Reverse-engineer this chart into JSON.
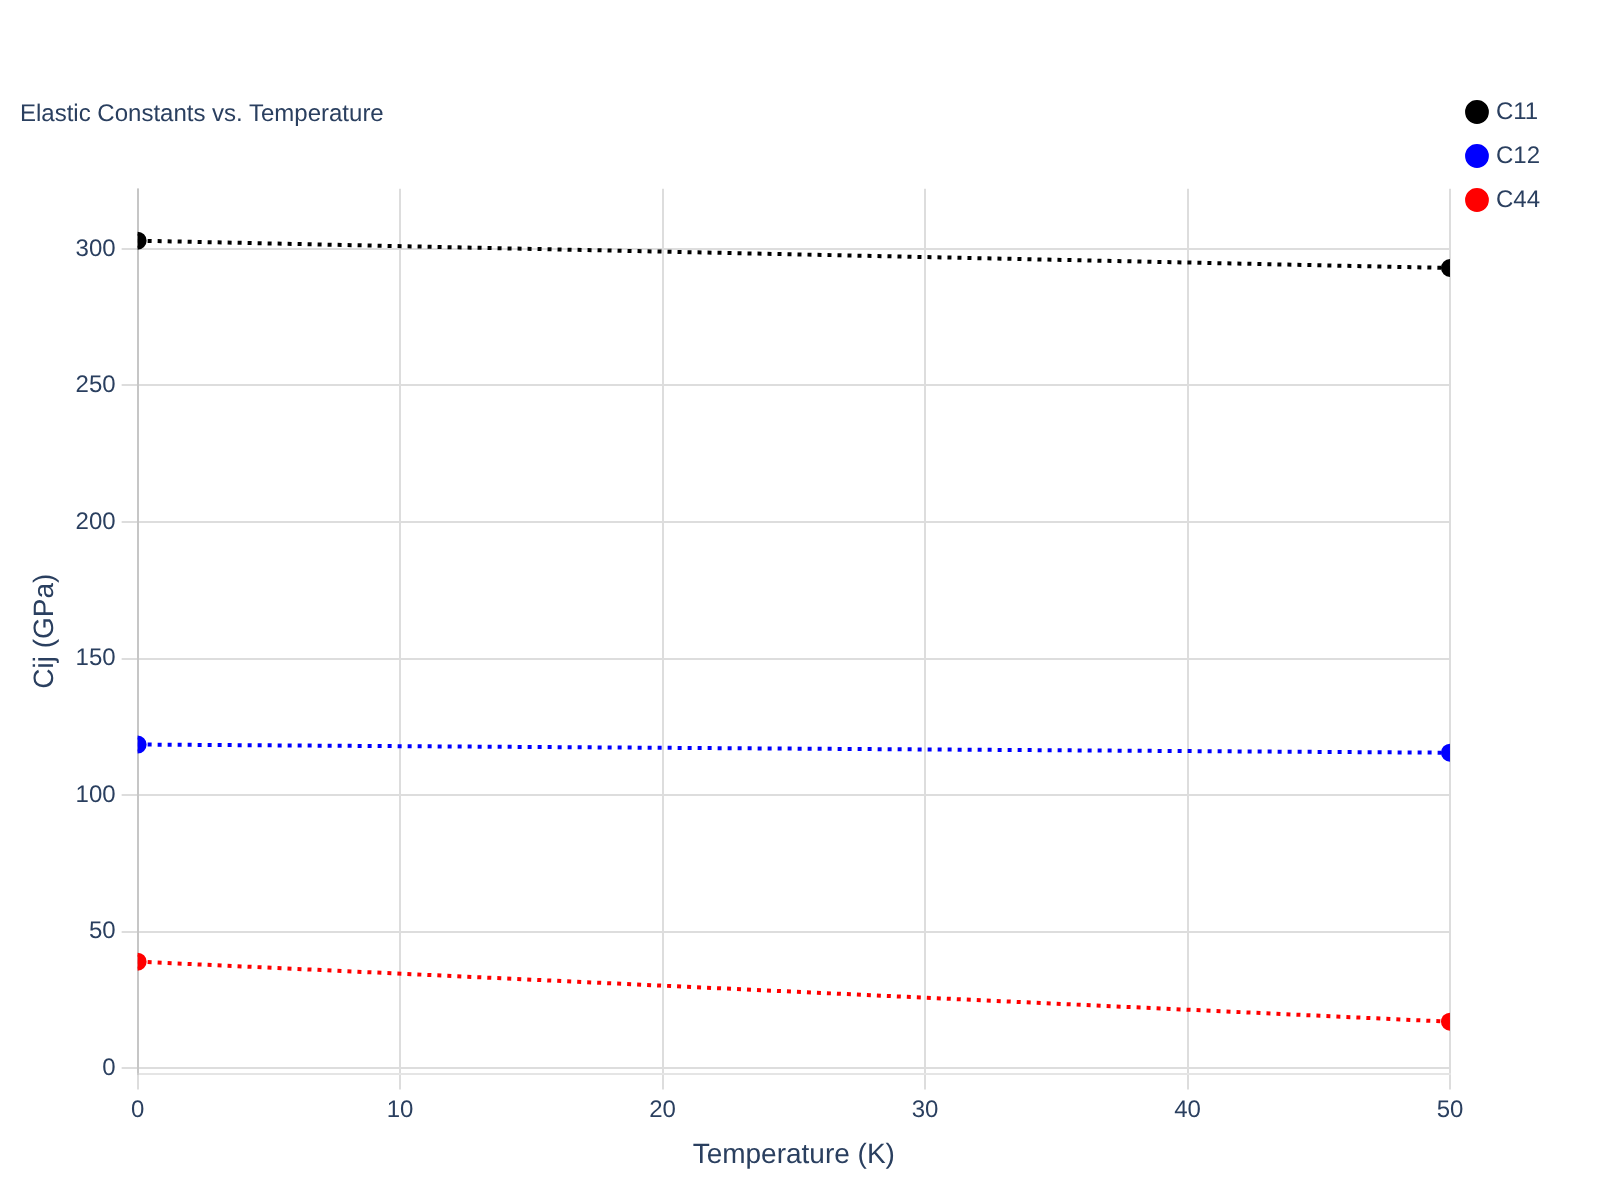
{
  "chart_data": {
    "type": "line",
    "title": "Elastic Constants vs. Temperature",
    "xlabel": "Temperature (K)",
    "ylabel": "Cij (GPa)",
    "x": [
      0,
      50
    ],
    "series": [
      {
        "name": "C11",
        "color": "#000000",
        "values": [
          303,
          293
        ]
      },
      {
        "name": "C12",
        "color": "#0000ff",
        "values": [
          118.5,
          115.5
        ]
      },
      {
        "name": "C44",
        "color": "#ff0000",
        "values": [
          39,
          17
        ]
      }
    ],
    "xlim": [
      0,
      50
    ],
    "xticks": [
      0,
      10,
      20,
      30,
      40,
      50
    ],
    "ylim": [
      -2,
      322
    ],
    "yticks": [
      0,
      50,
      100,
      150,
      200,
      250,
      300
    ],
    "grid": true,
    "legend": "top right",
    "marker": "circle",
    "line_style": "dotted"
  }
}
